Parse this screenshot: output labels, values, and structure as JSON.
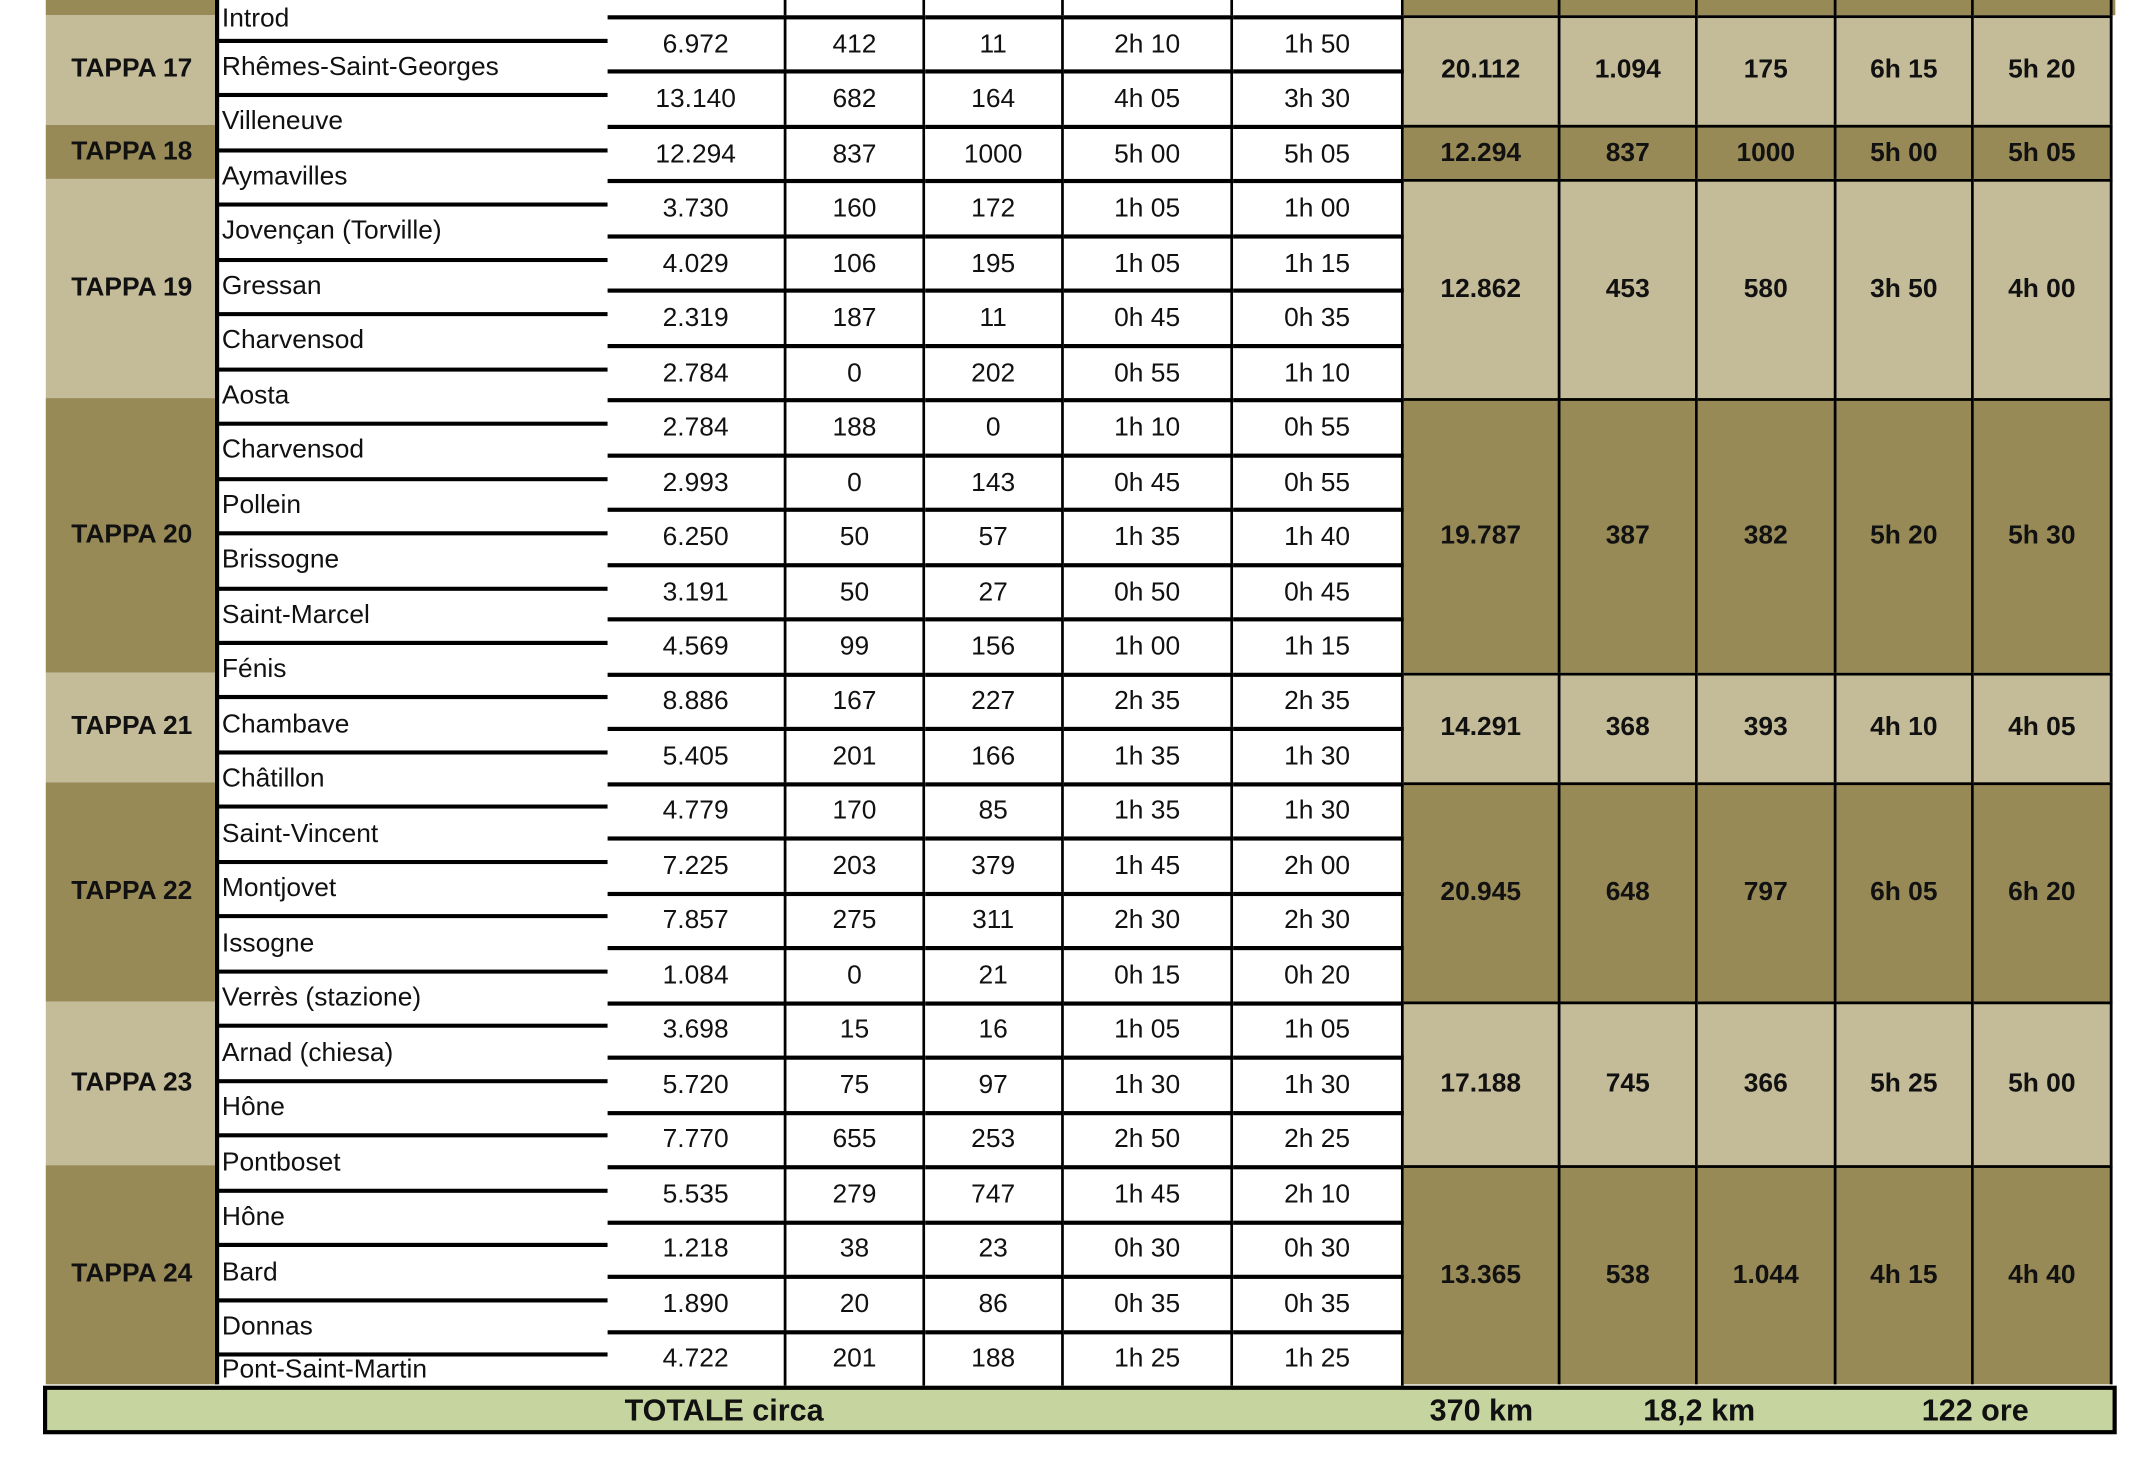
{
  "colors": {
    "light": "#c4bb98",
    "dark": "#978a57",
    "total": "#c6d5a0"
  },
  "places": [
    "Introd",
    "Rhêmes-Saint-Georges",
    "Villeneuve",
    "Aymavilles",
    "Jovençan (Torville)",
    "Gressan",
    "Charvensod",
    "Aosta",
    "Charvensod",
    "Pollein",
    "Brissogne",
    "Saint-Marcel",
    "Fénis",
    "Chambave",
    "Châtillon",
    "Saint-Vincent",
    "Montjovet",
    "Issogne",
    "Verrès (stazione)",
    "Arnad (chiesa)",
    "Hône",
    "Pontboset",
    "Hône",
    "Bard",
    "Donnas",
    "Pont-Saint-Martin"
  ],
  "rows": [
    [
      "6.972",
      "412",
      "11",
      "2h 10",
      "1h 50"
    ],
    [
      "13.140",
      "682",
      "164",
      "4h 05",
      "3h 30"
    ],
    [
      "12.294",
      "837",
      "1000",
      "5h 00",
      "5h 05"
    ],
    [
      "3.730",
      "160",
      "172",
      "1h 05",
      "1h 00"
    ],
    [
      "4.029",
      "106",
      "195",
      "1h 05",
      "1h 15"
    ],
    [
      "2.319",
      "187",
      "11",
      "0h 45",
      "0h 35"
    ],
    [
      "2.784",
      "0",
      "202",
      "0h 55",
      "1h 10"
    ],
    [
      "2.784",
      "188",
      "0",
      "1h 10",
      "0h 55"
    ],
    [
      "2.993",
      "0",
      "143",
      "0h 45",
      "0h 55"
    ],
    [
      "6.250",
      "50",
      "57",
      "1h 35",
      "1h 40"
    ],
    [
      "3.191",
      "50",
      "27",
      "0h 50",
      "0h 45"
    ],
    [
      "4.569",
      "99",
      "156",
      "1h 00",
      "1h 15"
    ],
    [
      "8.886",
      "167",
      "227",
      "2h 35",
      "2h 35"
    ],
    [
      "5.405",
      "201",
      "166",
      "1h 35",
      "1h 30"
    ],
    [
      "4.779",
      "170",
      "85",
      "1h 35",
      "1h 30"
    ],
    [
      "7.225",
      "203",
      "379",
      "1h 45",
      "2h 00"
    ],
    [
      "7.857",
      "275",
      "311",
      "2h 30",
      "2h 30"
    ],
    [
      "1.084",
      "0",
      "21",
      "0h 15",
      "0h 20"
    ],
    [
      "3.698",
      "15",
      "16",
      "1h 05",
      "1h 05"
    ],
    [
      "5.720",
      "75",
      "97",
      "1h 30",
      "1h 30"
    ],
    [
      "7.770",
      "655",
      "253",
      "2h 50",
      "2h 25"
    ],
    [
      "5.535",
      "279",
      "747",
      "1h 45",
      "2h 10"
    ],
    [
      "1.218",
      "38",
      "23",
      "0h 30",
      "0h 30"
    ],
    [
      "1.890",
      "20",
      "86",
      "0h 35",
      "0h 35"
    ],
    [
      "4.722",
      "201",
      "188",
      "1h 25",
      "1h 25"
    ]
  ],
  "tappe": [
    {
      "label": "TAPPA 17",
      "start": 0,
      "count": 2,
      "shade": "light",
      "summary": [
        "20.112",
        "1.094",
        "175",
        "6h 15",
        "5h 20"
      ]
    },
    {
      "label": "TAPPA 18",
      "start": 2,
      "count": 1,
      "shade": "dark",
      "summary": [
        "12.294",
        "837",
        "1000",
        "5h 00",
        "5h 05"
      ]
    },
    {
      "label": "TAPPA 19",
      "start": 3,
      "count": 4,
      "shade": "light",
      "summary": [
        "12.862",
        "453",
        "580",
        "3h 50",
        "4h 00"
      ]
    },
    {
      "label": "TAPPA 20",
      "start": 7,
      "count": 5,
      "shade": "dark",
      "summary": [
        "19.787",
        "387",
        "382",
        "5h 20",
        "5h 30"
      ]
    },
    {
      "label": "TAPPA 21",
      "start": 12,
      "count": 2,
      "shade": "light",
      "summary": [
        "14.291",
        "368",
        "393",
        "4h 10",
        "4h 05"
      ]
    },
    {
      "label": "TAPPA 22",
      "start": 14,
      "count": 4,
      "shade": "dark",
      "summary": [
        "20.945",
        "648",
        "797",
        "6h 05",
        "6h 20"
      ]
    },
    {
      "label": "TAPPA 23",
      "start": 18,
      "count": 3,
      "shade": "light",
      "summary": [
        "17.188",
        "745",
        "366",
        "5h 25",
        "5h 00"
      ]
    },
    {
      "label": "TAPPA 24",
      "start": 21,
      "count": 4,
      "shade": "dark",
      "summary": [
        "13.365",
        "538",
        "1.044",
        "4h 15",
        "4h 40"
      ]
    }
  ],
  "total": {
    "label": "TOTALE circa",
    "km": "370 km",
    "dislivello": "18,2 km",
    "ore": "122 ore"
  }
}
